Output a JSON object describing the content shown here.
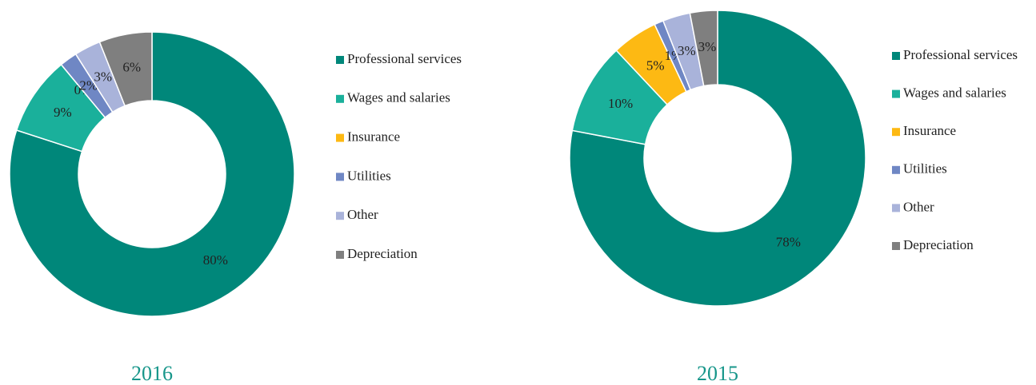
{
  "chart_data": [
    {
      "type": "donut",
      "title": "2016",
      "categories": [
        "Professional services",
        "Wages and salaries",
        "Insurance",
        "Utilities",
        "Other",
        "Depreciation"
      ],
      "values": [
        80,
        9,
        0,
        2,
        3,
        6
      ],
      "value_labels": [
        "80%",
        "9%",
        "0%",
        "2%",
        "3%",
        "6%"
      ],
      "colors": [
        "#00877a",
        "#1ab09b",
        "#fdb913",
        "#6f87c4",
        "#a9b3da",
        "#7f7f7f"
      ]
    },
    {
      "type": "donut",
      "title": "2015",
      "categories": [
        "Professional services",
        "Wages and salaries",
        "Insurance",
        "Utilities",
        "Other",
        "Depreciation"
      ],
      "values": [
        78,
        10,
        5,
        1,
        3,
        3
      ],
      "value_labels": [
        "78%",
        "10%",
        "5%",
        "1%",
        "3%",
        "3%"
      ],
      "colors": [
        "#00877a",
        "#1ab09b",
        "#fdb913",
        "#6f87c4",
        "#a9b3da",
        "#7f7f7f"
      ]
    }
  ]
}
